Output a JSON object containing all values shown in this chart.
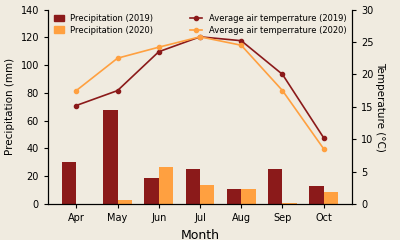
{
  "months": [
    "Apr",
    "May",
    "Jun",
    "Jul",
    "Aug",
    "Sep",
    "Oct"
  ],
  "precip_2019": [
    30,
    68,
    19,
    25,
    11,
    25,
    13
  ],
  "precip_2020": [
    0,
    3,
    27,
    14,
    11,
    1,
    9
  ],
  "temp_2019": [
    15.2,
    17.5,
    23.5,
    25.8,
    25.2,
    20.0,
    10.2
  ],
  "temp_2020": [
    17.5,
    22.5,
    24.2,
    25.8,
    24.5,
    17.5,
    8.5
  ],
  "bar_color_2019": "#8B1A1A",
  "bar_color_2020": "#FFA040",
  "line_color_2019": "#8B1A1A",
  "line_color_2020": "#FFA040",
  "ylabel_left": "Precipitation (mm)",
  "ylabel_right": "Temperature (°C)",
  "xlabel": "Month",
  "ylim_left": [
    0,
    140
  ],
  "ylim_right": [
    0,
    30
  ],
  "yticks_left": [
    0,
    20,
    40,
    60,
    80,
    100,
    120,
    140
  ],
  "yticks_right": [
    0,
    5,
    10,
    15,
    20,
    25,
    30
  ],
  "legend_labels": [
    "Precipitation (2019)",
    "Precipitation (2020)",
    "Average air temperrature (2019)",
    "Average air temperrature (2020)"
  ],
  "background_color": "#f0ebe0",
  "axis_fontsize": 7.5,
  "tick_fontsize": 7.0,
  "legend_fontsize": 6.0,
  "xlabel_fontsize": 9
}
